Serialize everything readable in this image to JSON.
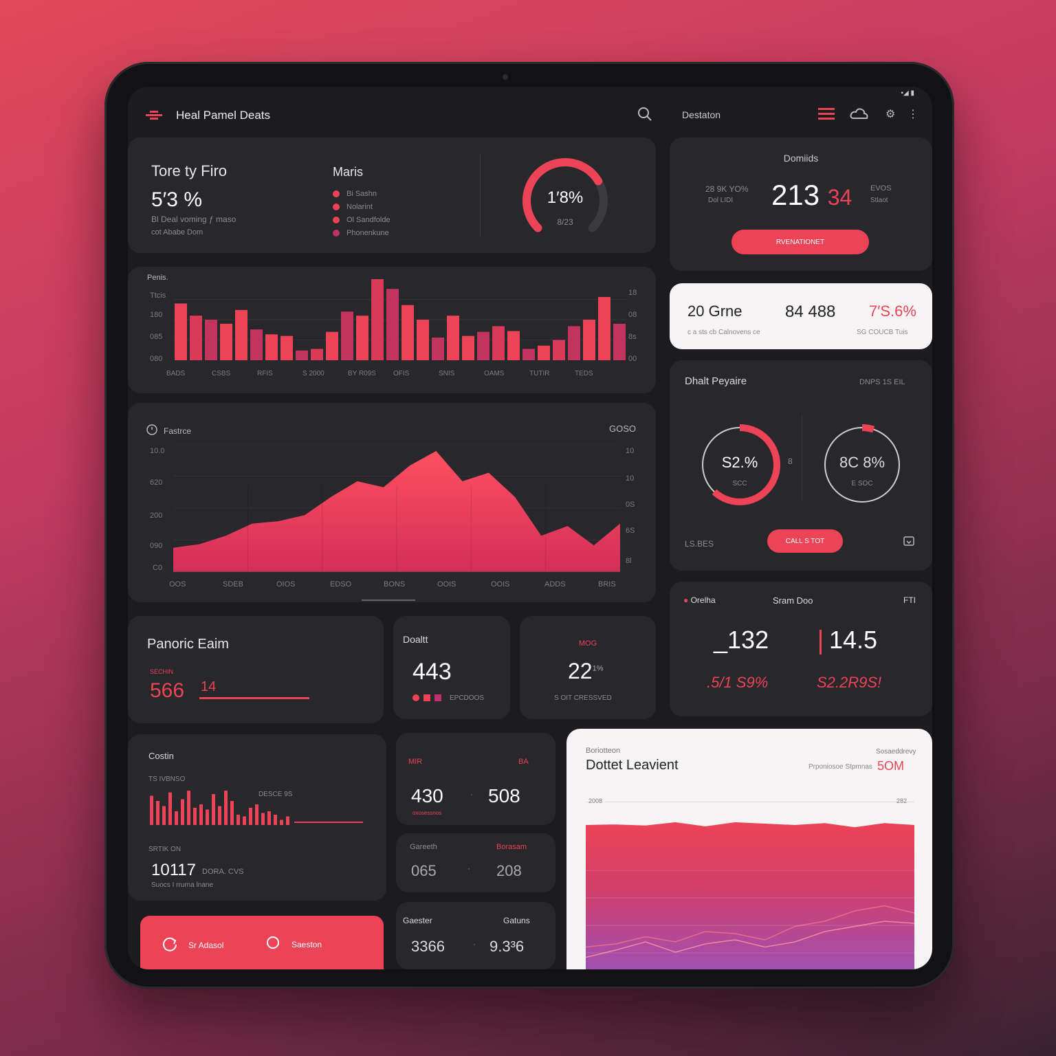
{
  "header": {
    "title": "Heal Pamel Deats",
    "profile_label": "Destaton"
  },
  "summary": {
    "title": "Tore ty Firo",
    "value": "5′3 %",
    "sub1": "Bl Deal voming ƒ maso",
    "sub2": "cot Ababe Dom",
    "legend_title": "Maris",
    "legend": [
      "Bi Sashn",
      "Nolarint",
      "Ol Sandfolde",
      "Phonenkune"
    ],
    "gauge_value": "1′8%",
    "gauge_sub": "8/23",
    "gauge_percent": 0.72
  },
  "domain_card": {
    "title": "Domiids",
    "left_top": "28 9K YO%",
    "left_bottom": "Dol LIDI",
    "big_value": "213",
    "big_suffix": "34",
    "right_top": "EVOS",
    "right_bottom": "Stlaot",
    "button": "RVENATIONET"
  },
  "bar_chart": {
    "title": "Penis.",
    "y_left": [
      "Ttcis",
      "180",
      "085",
      "080"
    ],
    "y_right": [
      "18",
      "08",
      "8s",
      "00"
    ],
    "x_labels": [
      "BADS",
      "CSBS",
      "RFIS",
      "S 2000",
      "BY R09S",
      "OFIS",
      "SNIS",
      "OAMS",
      "TUTIR",
      "TEDS"
    ]
  },
  "white_summary": {
    "label": "20 Grne",
    "value": "84 488",
    "percent": "7′S.6%",
    "sub_left": "c a sts cb Calnovens ce",
    "sub_right": "SG COUCB Tuis"
  },
  "area_chart": {
    "title": "Fastrce",
    "corner": "GOSO",
    "y_left": [
      "10.0",
      "620",
      "200",
      "090",
      "C0"
    ],
    "y_right": [
      "10",
      "10",
      "0S",
      "6S",
      "8l"
    ],
    "x_labels": [
      "OOS",
      "SDEB",
      "OIOS",
      "EDSO",
      "BONS",
      "OOIS",
      "OOIS",
      "ADDS",
      "BRIS"
    ]
  },
  "rings_card": {
    "title": "Dhalt Peyaire",
    "corner": "DNPS 1S EIL",
    "ring1_value": "S2.%",
    "ring1_sub": "SCC",
    "ring1_percent": 0.62,
    "ring2_value": "8C 8%",
    "ring2_sub": "E SOC",
    "ring2_percent": 0.05,
    "mid_label": "8",
    "bottom_left": "LS.BES",
    "button": "CALL S TOT"
  },
  "panoric": {
    "title": "Panoric Eaim",
    "label": "SECHIN",
    "value": "566",
    "suffix": "14"
  },
  "doalt": {
    "title": "Doaltt",
    "value": "443",
    "legend": "EPCDOOS"
  },
  "stat22": {
    "top": "MOG",
    "value": "22",
    "suffix": "1%",
    "sub": "S OIT CRESSVED"
  },
  "sprn": {
    "left": "Orelha",
    "center": "Sram Doo",
    "right": "FTI",
    "v1": "_132",
    "v2": "14.5",
    "p1": ".5/1 S9%",
    "p2": "S2.2R9S!"
  },
  "costin": {
    "title": "Costin",
    "sub": "TS IVBNSO",
    "legend": "DESCE 9S",
    "label2": "SRTIK ON",
    "value": "10117",
    "value_suffix": "DORA. CVS",
    "footer": "Suocs I rrurna lnane",
    "bars": [
      0.85,
      0.7,
      0.55,
      0.95,
      0.4,
      0.75,
      1.0,
      0.5,
      0.6,
      0.45,
      0.9,
      0.55,
      1.0,
      0.7,
      0.3,
      0.25,
      0.5,
      0.6,
      0.35,
      0.4,
      0.3,
      0.15,
      0.25
    ]
  },
  "mini_a": {
    "l": "MIR",
    "r": "BA",
    "v1": "430",
    "v2": "508",
    "sub": "oxosessnos"
  },
  "mini_b": {
    "l": "Gareeth",
    "r": "Borasam",
    "v1": "065",
    "v2": "208"
  },
  "mini_c": {
    "l": "Gaester",
    "r": "Gatuns",
    "v1": "3366",
    "v2": "9.3³6"
  },
  "cta": {
    "left": "Sr Adasol",
    "right": "Saeston"
  },
  "white_chart": {
    "kicker": "Boriotteon",
    "title": "Dottet Leavient",
    "right_label": "Sosaeddrevy",
    "right_sub": "Prponiosoe Stpmnas",
    "right_value": "5OM",
    "y_top": "2008",
    "y_right_top": "282"
  },
  "colors": {
    "accent": "#ec4356",
    "card": "#27272c",
    "purple": "#a04fb3"
  },
  "chart_data": [
    {
      "type": "bar",
      "title": "Penis.",
      "values": [
        0.7,
        0.55,
        0.5,
        0.45,
        0.62,
        0.38,
        0.32,
        0.3,
        0.12,
        0.14,
        0.35,
        0.6,
        0.55,
        1.0,
        0.88,
        0.68,
        0.5,
        0.28,
        0.55,
        0.3,
        0.35,
        0.42,
        0.36,
        0.14,
        0.18,
        0.25,
        0.42,
        0.5,
        0.78,
        0.45
      ],
      "ylim": [
        0,
        1
      ]
    },
    {
      "type": "area",
      "title": "Fastrce",
      "values": [
        0.2,
        0.23,
        0.3,
        0.4,
        0.42,
        0.47,
        0.62,
        0.75,
        0.7,
        0.88,
        1.0,
        0.75,
        0.82,
        0.62,
        0.3,
        0.38,
        0.22,
        0.4
      ],
      "ylim": [
        0,
        1
      ]
    },
    {
      "type": "area",
      "title": "Dottet Leavient",
      "series": [
        {
          "values": [
            0.9,
            0.92,
            0.88,
            1.0,
            0.85,
            1.0,
            0.95,
            0.9,
            0.97,
            0.82,
            0.97,
            0.9
          ]
        },
        {
          "values": [
            0.15,
            0.18,
            0.25,
            0.2,
            0.3,
            0.28,
            0.22,
            0.35,
            0.4,
            0.5,
            0.55,
            0.48
          ]
        },
        {
          "values": [
            0.05,
            0.12,
            0.2,
            0.1,
            0.18,
            0.22,
            0.15,
            0.2,
            0.3,
            0.35,
            0.4,
            0.38
          ]
        }
      ],
      "ylim": [
        0,
        1
      ]
    }
  ]
}
